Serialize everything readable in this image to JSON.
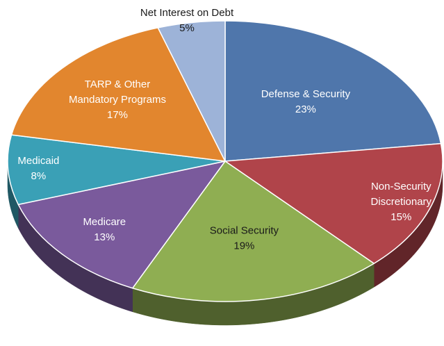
{
  "chart_data": {
    "type": "pie",
    "title": "",
    "legend": "none",
    "start": "12 o'clock, clockwise",
    "slices": [
      {
        "label_lines": [
          "Defense & Security"
        ],
        "value": 23,
        "value_label": "23%",
        "color": "#4f76ab",
        "label_color": "#ffffff"
      },
      {
        "label_lines": [
          "Non-Security",
          "Discretionary"
        ],
        "value": 15,
        "value_label": "15%",
        "color": "#b0444a",
        "label_color": "#ffffff"
      },
      {
        "label_lines": [
          "Social Security"
        ],
        "value": 19,
        "value_label": "19%",
        "color": "#8fae52",
        "label_color": "#1a1a1a"
      },
      {
        "label_lines": [
          "Medicare"
        ],
        "value": 13,
        "value_label": "13%",
        "color": "#7a5a9c",
        "label_color": "#ffffff"
      },
      {
        "label_lines": [
          "Medicaid"
        ],
        "value": 8,
        "value_label": "8%",
        "color": "#3aa0b6",
        "label_color": "#ffffff"
      },
      {
        "label_lines": [
          "TARP & Other",
          "Mandatory Programs"
        ],
        "value": 17,
        "value_label": "17%",
        "color": "#e2862e",
        "label_color": "#ffffff"
      },
      {
        "label_lines": [
          "Net Interest on Debt"
        ],
        "value": 5,
        "value_label": "5%",
        "color": "#9db3d8",
        "label_color": "#1a1a1a"
      }
    ]
  }
}
